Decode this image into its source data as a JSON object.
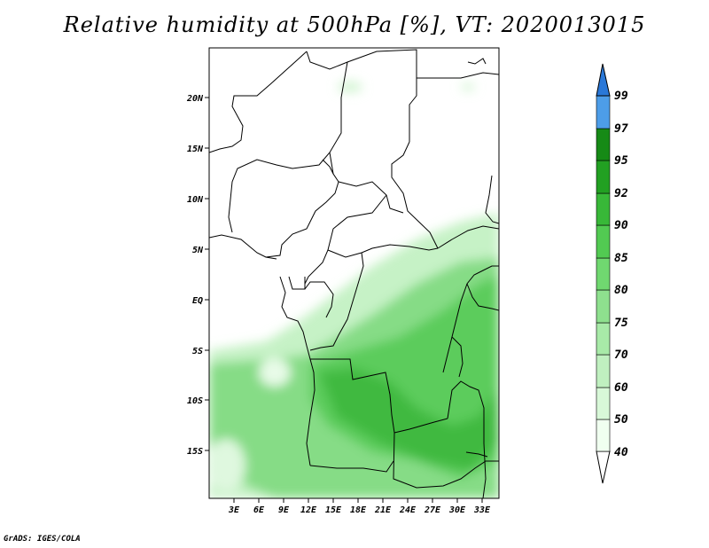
{
  "title": "Relative humidity at 500hPa [%], VT: 2020013015",
  "credit": "GrADS: IGES/COLA",
  "map": {
    "lon_labels": [
      "3E",
      "6E",
      "9E",
      "12E",
      "15E",
      "18E",
      "21E",
      "24E",
      "27E",
      "30E",
      "33E"
    ],
    "lat_labels": [
      "20N",
      "15N",
      "10N",
      "5N",
      "EQ",
      "5S",
      "10S",
      "15S"
    ]
  },
  "colorbar": {
    "labels": [
      "40",
      "50",
      "60",
      "70",
      "75",
      "80",
      "85",
      "90",
      "92",
      "95",
      "97",
      "99"
    ],
    "colors": [
      "#f0fff0",
      "#d8f8d8",
      "#c0f0c0",
      "#a8eaa8",
      "#8ee08e",
      "#70d870",
      "#52ca52",
      "#38b838",
      "#22a022",
      "#168a16",
      "#4d9de8",
      "#2a78d8",
      "#1c5fc4"
    ]
  }
}
